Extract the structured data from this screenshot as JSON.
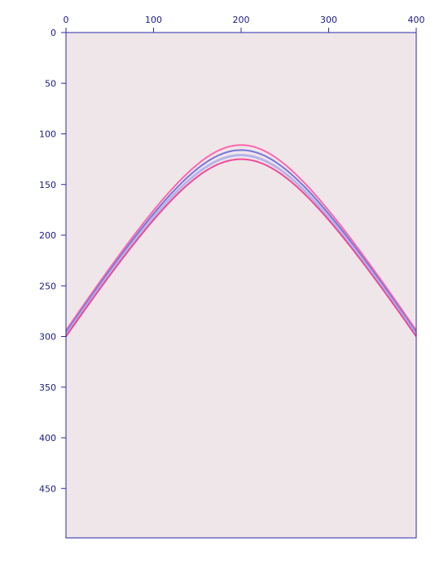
{
  "chart_data": {
    "type": "line",
    "title": "",
    "xlabel": "",
    "ylabel": "",
    "xlim": [
      0,
      400
    ],
    "ylim": [
      0,
      500
    ],
    "y_inverted": true,
    "x_ticks": [
      0,
      100,
      200,
      300,
      400
    ],
    "y_ticks": [
      0,
      50,
      100,
      150,
      200,
      250,
      300,
      350,
      400,
      450
    ],
    "x_tick_labels": [
      "0",
      "100",
      "200",
      "300",
      "400"
    ],
    "y_tick_labels": [
      "0",
      "50",
      "100",
      "150",
      "200",
      "250",
      "300",
      "350",
      "400",
      "450"
    ],
    "x_axis_position": "top",
    "grid": false,
    "legend": "none",
    "background_color": "#efe6ea",
    "axis_color": "#2a2aa8",
    "series": [
      {
        "color": "#ff5fa8",
        "apex_x": 200,
        "apex_y": 111,
        "x": [
          0,
          40,
          80,
          120,
          160,
          200,
          240,
          280,
          320,
          360,
          400
        ],
        "y": [
          294,
          249,
          207,
          169,
          128,
          111,
          128,
          169,
          207,
          249,
          294
        ]
      },
      {
        "color": "#7070d8",
        "apex_x": 200,
        "apex_y": 116,
        "x": [
          0,
          40,
          80,
          120,
          160,
          200,
          240,
          280,
          320,
          360,
          400
        ],
        "y": [
          296,
          252,
          210,
          172,
          133,
          116,
          133,
          172,
          210,
          252,
          296
        ]
      },
      {
        "color": "#a8a8e8",
        "apex_x": 200,
        "apex_y": 121,
        "x": [
          0,
          40,
          80,
          120,
          160,
          200,
          240,
          280,
          320,
          360,
          400
        ],
        "y": [
          298,
          255,
          213,
          175,
          138,
          121,
          138,
          175,
          213,
          255,
          298
        ]
      },
      {
        "color": "#f04090",
        "apex_x": 200,
        "apex_y": 125,
        "x": [
          0,
          40,
          80,
          120,
          160,
          200,
          240,
          280,
          320,
          360,
          400
        ],
        "y": [
          300,
          257,
          216,
          178,
          142,
          125,
          142,
          178,
          216,
          257,
          300
        ]
      }
    ]
  }
}
